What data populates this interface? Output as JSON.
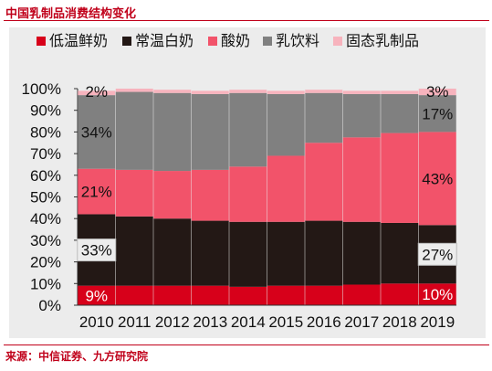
{
  "title": "中国乳制品消费结构变化",
  "source": "来源：中信证券、九方研究院",
  "chart_data": {
    "type": "bar",
    "stacked": true,
    "categories": [
      "2010",
      "2011",
      "2012",
      "2013",
      "2014",
      "2015",
      "2016",
      "2017",
      "2018",
      "2019"
    ],
    "series": [
      {
        "name": "低温鲜奶",
        "color": "#d7001a",
        "values": [
          9,
          9,
          9,
          9,
          8.5,
          9,
          9,
          9.5,
          10,
          10
        ]
      },
      {
        "name": "常温白奶",
        "color": "#231815",
        "values": [
          33,
          32,
          31,
          30,
          30,
          29.5,
          30,
          29,
          28,
          27
        ]
      },
      {
        "name": "酸奶",
        "color": "#f2536a",
        "values": [
          21,
          21.5,
          22,
          23.5,
          25.5,
          30.5,
          36,
          39,
          41.5,
          43
        ]
      },
      {
        "name": "乳饮料",
        "color": "#808080",
        "values": [
          34,
          36,
          36,
          35,
          34,
          28.5,
          23,
          20,
          18,
          17
        ]
      },
      {
        "name": "固态乳制品",
        "color": "#f7b3bd",
        "values": [
          2,
          1.5,
          1.5,
          1.5,
          1.5,
          1.5,
          1.5,
          1.5,
          1.5,
          3
        ]
      }
    ],
    "ylim": [
      0,
      100
    ],
    "yticks": [
      "0%",
      "10%",
      "20%",
      "30%",
      "40%",
      "50%",
      "60%",
      "70%",
      "80%",
      "90%",
      "100%"
    ],
    "legend_position": "top",
    "data_labels": [
      {
        "category": "2010",
        "series": "低温鲜奶",
        "text": "9%"
      },
      {
        "category": "2010",
        "series": "常温白奶",
        "text": "33%",
        "boxed": true
      },
      {
        "category": "2010",
        "series": "酸奶",
        "text": "21%"
      },
      {
        "category": "2010",
        "series": "乳饮料",
        "text": "34%"
      },
      {
        "category": "2010",
        "series": "固态乳制品",
        "text": "2%"
      },
      {
        "category": "2019",
        "series": "低温鲜奶",
        "text": "10%"
      },
      {
        "category": "2019",
        "series": "常温白奶",
        "text": "27%",
        "boxed": true
      },
      {
        "category": "2019",
        "series": "酸奶",
        "text": "43%"
      },
      {
        "category": "2019",
        "series": "乳饮料",
        "text": "17%"
      },
      {
        "category": "2019",
        "series": "固态乳制品",
        "text": "3%"
      }
    ]
  }
}
